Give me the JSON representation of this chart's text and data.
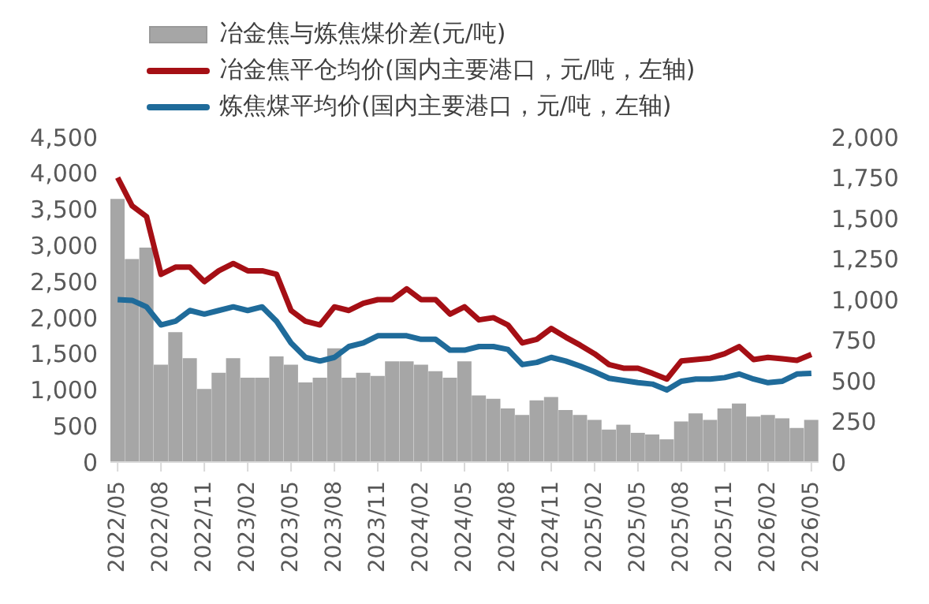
{
  "chart_data": {
    "type": "line",
    "categories": [
      "2022/05",
      null,
      null,
      "2022/08",
      null,
      null,
      "2022/11",
      null,
      null,
      "2023/02",
      null,
      null,
      "2023/05",
      null,
      null,
      "2023/08",
      null,
      null,
      "2023/11",
      null,
      null,
      "2024/02",
      null,
      null,
      "2024/05",
      null,
      null,
      "2024/08",
      null,
      null,
      "2024/11",
      null,
      null,
      "2025/02",
      null,
      null,
      "2025/05",
      null,
      null,
      "2025/08",
      null,
      null,
      "2025/11",
      null,
      null,
      "2026/02",
      null,
      null,
      "2026/05"
    ],
    "series": [
      {
        "name": "冶金焦与炼焦煤价差(元/吨)",
        "type": "bar",
        "axis": "y2",
        "color": "#a6a6a6",
        "values": [
          1620,
          1250,
          1320,
          600,
          800,
          640,
          450,
          550,
          640,
          520,
          520,
          650,
          600,
          490,
          520,
          700,
          520,
          550,
          530,
          620,
          620,
          600,
          560,
          520,
          620,
          410,
          390,
          330,
          290,
          380,
          400,
          320,
          290,
          260,
          200,
          230,
          180,
          170,
          140,
          250,
          300,
          260,
          330,
          360,
          280,
          290,
          270,
          210,
          260
        ]
      },
      {
        "name": "冶金焦平仓均价(国内主要港口，元/吨，左轴)",
        "color": "#a50f15",
        "values": [
          3940,
          3550,
          3400,
          2600,
          2700,
          2700,
          2500,
          2650,
          2750,
          2650,
          2650,
          2600,
          2100,
          1950,
          1900,
          2150,
          2100,
          2200,
          2250,
          2250,
          2400,
          2250,
          2250,
          2050,
          2150,
          1970,
          2000,
          1900,
          1650,
          1700,
          1850,
          1730,
          1620,
          1500,
          1350,
          1300,
          1300,
          1230,
          1150,
          1400,
          1420,
          1440,
          1500,
          1600,
          1420,
          1450,
          1430,
          1410,
          1490
        ]
      },
      {
        "name": "炼焦煤平均价(国内主要港口，元/吨，左轴)",
        "color": "#1f6b9a",
        "values": [
          2250,
          2240,
          2150,
          1900,
          1950,
          2100,
          2050,
          2100,
          2150,
          2100,
          2150,
          1950,
          1650,
          1450,
          1400,
          1450,
          1600,
          1650,
          1750,
          1750,
          1750,
          1700,
          1700,
          1550,
          1550,
          1600,
          1600,
          1560,
          1350,
          1380,
          1450,
          1400,
          1330,
          1250,
          1160,
          1130,
          1100,
          1080,
          1000,
          1120,
          1150,
          1150,
          1170,
          1220,
          1150,
          1100,
          1120,
          1220,
          1230
        ]
      }
    ],
    "ylim": [
      0,
      4500
    ],
    "yticks": [
      0,
      500,
      {
        "value": 1000,
        "label": "1,000"
      },
      {
        "value": 1500,
        "label": "1,500"
      },
      {
        "value": 2000,
        "label": "2,000"
      },
      {
        "value": 2500,
        "label": "2,500"
      },
      {
        "value": 3000,
        "label": "3,000"
      },
      {
        "value": 3500,
        "label": "3,500"
      },
      {
        "value": 4000,
        "label": "4,000"
      },
      {
        "value": 4500,
        "label": "4,500"
      }
    ],
    "y2lim": [
      0,
      2000
    ],
    "y2ticks": [
      0,
      250,
      500,
      750,
      {
        "value": 1000,
        "label": "1,000"
      },
      {
        "value": 1250,
        "label": "1,250"
      },
      {
        "value": 1500,
        "label": "1,500"
      },
      {
        "value": 1750,
        "label": "1,750"
      },
      {
        "value": 2000,
        "label": "2,000"
      }
    ],
    "legend": "top",
    "grid": false,
    "marker": "none",
    "line_style": "solid"
  }
}
